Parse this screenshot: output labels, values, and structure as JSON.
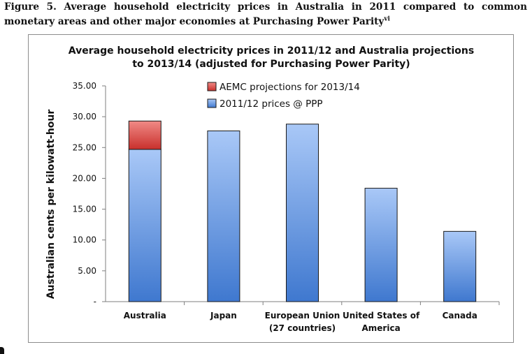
{
  "caption": {
    "text": "Figure 5.  Average household electricity prices in Australia in 2011 compared to common monetary areas and other major economies at Purchasing Power Parity",
    "superscript": "vi"
  },
  "chart_data": {
    "type": "bar",
    "stacked": true,
    "title_lines": [
      "Average household electricity prices in 2011/12 and Australia projections",
      "to 2013/14 (adjusted for Purchasing Power Parity)"
    ],
    "xlabel": "",
    "ylabel": "Australian cents per kilowatt-hour",
    "ylim": [
      0,
      35
    ],
    "yticks": [
      0,
      5,
      10,
      15,
      20,
      25,
      30,
      35
    ],
    "ytick_labels": [
      "-",
      "5.00",
      "10.00",
      "15.00",
      "20.00",
      "25.00",
      "30.00",
      "35.00"
    ],
    "categories": [
      [
        "Australia"
      ],
      [
        "Japan"
      ],
      [
        "European Union",
        "(27 countries)"
      ],
      [
        "United States of",
        "America"
      ],
      [
        "Canada"
      ]
    ],
    "series": [
      {
        "name": "2011/12 prices @ PPP",
        "values": [
          24.7,
          27.7,
          28.8,
          18.4,
          11.4
        ],
        "color": "#5b8fdc"
      },
      {
        "name": "AEMC projections for 2013/14",
        "values": [
          4.6,
          0,
          0,
          0,
          0
        ],
        "color": "#d9423e"
      }
    ],
    "legend": [
      {
        "label": "AEMC projections for 2013/14",
        "color": "#d9423e"
      },
      {
        "label": "2011/12 prices @ PPP",
        "color": "#5b8fdc"
      }
    ],
    "legend_position": "top-center",
    "grid": false
  }
}
